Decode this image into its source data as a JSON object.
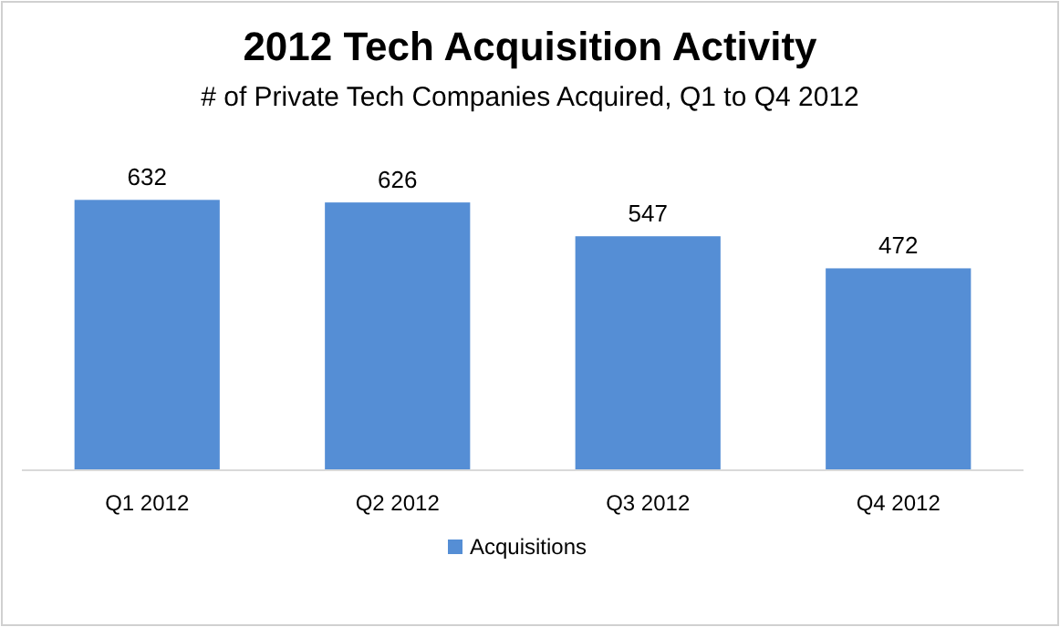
{
  "chart_data": {
    "type": "bar",
    "title": "2012 Tech Acquisition Activity",
    "subtitle": "# of Private Tech Companies Acquired, Q1 to Q4 2012",
    "categories": [
      "Q1 2012",
      "Q2 2012",
      "Q3 2012",
      "Q4 2012"
    ],
    "series": [
      {
        "name": "Acquisitions",
        "color": "#558ed5",
        "values": [
          632,
          626,
          547,
          472
        ]
      }
    ],
    "data_labels": true,
    "legend": "bottom",
    "grid": false
  }
}
